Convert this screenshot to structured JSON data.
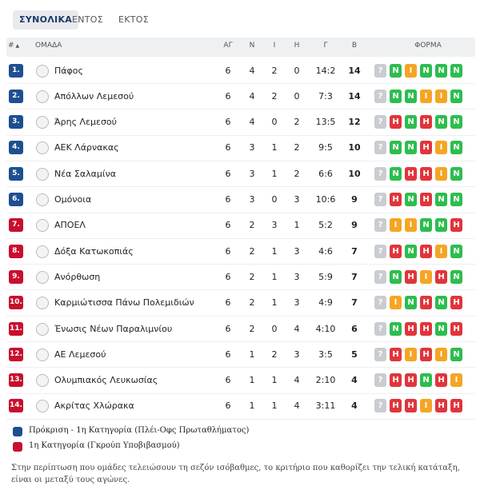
{
  "tabs": [
    "ΣΥΝΟΛΙΚΑ",
    "ΕΝΤΟΣ",
    "ΕΚΤΟΣ"
  ],
  "table": {
    "header": [
      "#",
      "ΟΜΑΔΑ",
      "ΑΓ",
      "Ν",
      "Ι",
      "Η",
      "Γ",
      "Β",
      "ΦΟΡΜΑ"
    ],
    "rows": [
      {
        "rank": "1.",
        "zone": 0,
        "team": "Πάφος",
        "stats": [
          "6",
          "4",
          "2",
          "0",
          "14:2",
          "14"
        ],
        "form": [
          "?",
          "N",
          "I",
          "N",
          "N",
          "N"
        ]
      },
      {
        "rank": "2.",
        "zone": 0,
        "team": "Απόλλων Λεμεσού",
        "stats": [
          "6",
          "4",
          "2",
          "0",
          "7:3",
          "14"
        ],
        "form": [
          "?",
          "N",
          "N",
          "I",
          "I",
          "N"
        ]
      },
      {
        "rank": "3.",
        "zone": 0,
        "team": "Άρης Λεμεσού",
        "stats": [
          "6",
          "4",
          "0",
          "2",
          "13:5",
          "12"
        ],
        "form": [
          "?",
          "H",
          "N",
          "H",
          "N",
          "N"
        ]
      },
      {
        "rank": "4.",
        "zone": 0,
        "team": "ΑΕΚ Λάρνακας",
        "stats": [
          "6",
          "3",
          "1",
          "2",
          "9:5",
          "10"
        ],
        "form": [
          "?",
          "N",
          "N",
          "H",
          "I",
          "N"
        ]
      },
      {
        "rank": "5.",
        "zone": 0,
        "team": "Νέα Σαλαμίνα",
        "stats": [
          "6",
          "3",
          "1",
          "2",
          "6:6",
          "10"
        ],
        "form": [
          "?",
          "N",
          "H",
          "H",
          "I",
          "N"
        ]
      },
      {
        "rank": "6.",
        "zone": 0,
        "team": "Ομόνοια",
        "stats": [
          "6",
          "3",
          "0",
          "3",
          "10:6",
          "9"
        ],
        "form": [
          "?",
          "H",
          "N",
          "H",
          "N",
          "N"
        ]
      },
      {
        "rank": "7.",
        "zone": 1,
        "team": "ΑΠΟΕΛ",
        "stats": [
          "6",
          "2",
          "3",
          "1",
          "5:2",
          "9"
        ],
        "form": [
          "?",
          "I",
          "I",
          "N",
          "N",
          "H"
        ]
      },
      {
        "rank": "8.",
        "zone": 1,
        "team": "Δόξα Κατωκοπιάς",
        "stats": [
          "6",
          "2",
          "1",
          "3",
          "4:6",
          "7"
        ],
        "form": [
          "?",
          "H",
          "N",
          "H",
          "I",
          "N"
        ]
      },
      {
        "rank": "9.",
        "zone": 1,
        "team": "Ανόρθωση",
        "stats": [
          "6",
          "2",
          "1",
          "3",
          "5:9",
          "7"
        ],
        "form": [
          "?",
          "N",
          "H",
          "I",
          "H",
          "N"
        ]
      },
      {
        "rank": "10.",
        "zone": 1,
        "team": "Καρμιώτισσα Πάνω Πολεμιδιών",
        "stats": [
          "6",
          "2",
          "1",
          "3",
          "4:9",
          "7"
        ],
        "form": [
          "?",
          "I",
          "N",
          "H",
          "N",
          "H"
        ]
      },
      {
        "rank": "11.",
        "zone": 1,
        "team": "Ένωσις Νέων Παραλιμνίου",
        "stats": [
          "6",
          "2",
          "0",
          "4",
          "4:10",
          "6"
        ],
        "form": [
          "?",
          "N",
          "H",
          "H",
          "N",
          "H"
        ]
      },
      {
        "rank": "12.",
        "zone": 1,
        "team": "ΑΕ Λεμεσού",
        "stats": [
          "6",
          "1",
          "2",
          "3",
          "3:5",
          "5"
        ],
        "form": [
          "?",
          "H",
          "I",
          "H",
          "I",
          "N"
        ]
      },
      {
        "rank": "13.",
        "zone": 1,
        "team": "Ολυμπιακός Λευκωσίας",
        "stats": [
          "6",
          "1",
          "1",
          "4",
          "2:10",
          "4"
        ],
        "form": [
          "?",
          "H",
          "H",
          "N",
          "H",
          "I"
        ]
      },
      {
        "rank": "14.",
        "zone": 1,
        "team": "Ακρίτας Χλώρακα",
        "stats": [
          "6",
          "1",
          "1",
          "4",
          "3:11",
          "4"
        ],
        "form": [
          "?",
          "H",
          "H",
          "I",
          "H",
          "H"
        ]
      }
    ]
  },
  "legend": [
    {
      "label": "Πρόκριση - 1η Κατηγορία (Πλέι-Οφς Πρωταθλήματος)",
      "color": "#1d4f91"
    },
    {
      "label": "1η Κατηγορία (Γκρούπ Υποβιβασμού)",
      "color": "#c8102e"
    }
  ],
  "note": "Στην περίπτωση που ομάδες τελειώσουν τη σεζόν ισόβαθμες, το κριτήριο που καθορίζει την τελική κατάταξη, είναι οι μεταξύ τους αγώνες."
}
